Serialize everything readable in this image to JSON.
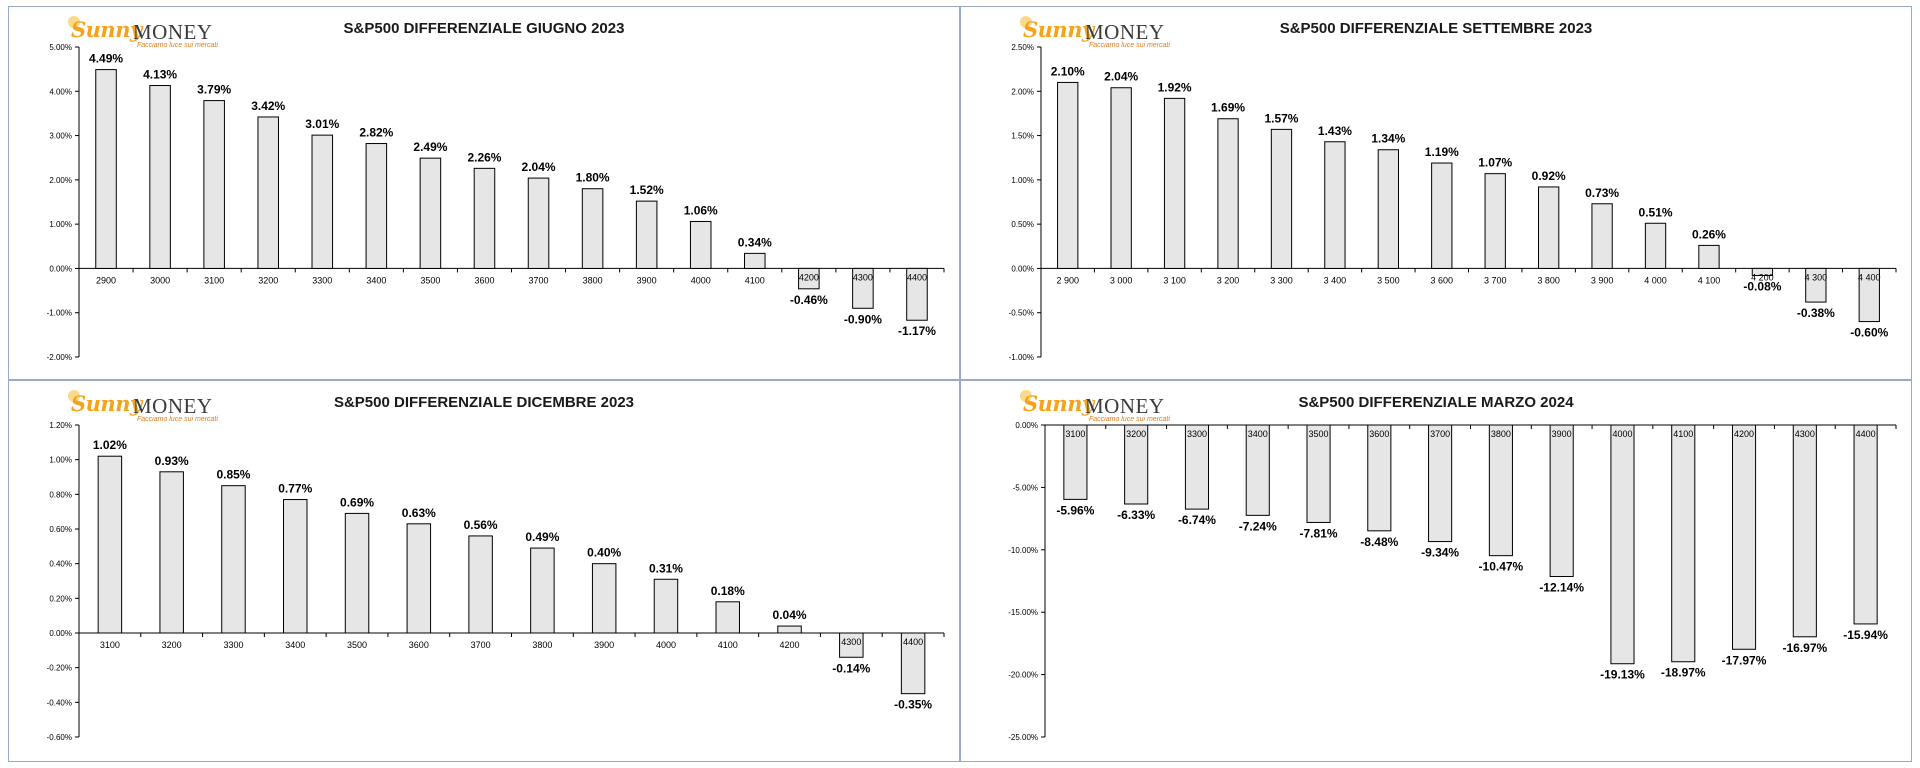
{
  "logo": {
    "brand_sunny": "Sunny",
    "brand_money": "MONEY",
    "tagline": "Facciamo luce sui mercati"
  },
  "colors": {
    "bar_fill": "#e6e6e6",
    "bar_stroke": "#000000",
    "axis": "#000000",
    "label": "#000000"
  },
  "chart_data": [
    {
      "type": "bar",
      "title": "S&P500 DIFFERENZIALE GIUGNO 2023",
      "categories": [
        "2900",
        "3000",
        "3100",
        "3200",
        "3300",
        "3400",
        "3500",
        "3600",
        "3700",
        "3800",
        "3900",
        "4000",
        "4100",
        "4200",
        "4300",
        "4400"
      ],
      "values": [
        4.49,
        4.13,
        3.79,
        3.42,
        3.01,
        2.82,
        2.49,
        2.26,
        2.04,
        1.8,
        1.52,
        1.06,
        0.34,
        -0.46,
        -0.9,
        -1.17
      ],
      "value_labels": [
        "4.49%",
        "4.13%",
        "3.79%",
        "3.42%",
        "3.01%",
        "2.82%",
        "2.49%",
        "2.26%",
        "2.04%",
        "1.80%",
        "1.52%",
        "1.06%",
        "0.34%",
        "-0.46%",
        "-0.90%",
        "-1.17%"
      ],
      "yticks": [
        "5.00%",
        "4.00%",
        "3.00%",
        "2.00%",
        "1.00%",
        "0.00%",
        "-1.00%",
        "-2.00%"
      ],
      "ytick_values": [
        5,
        4,
        3,
        2,
        1,
        0,
        -1,
        -2
      ],
      "ylim": [
        -2,
        5
      ],
      "grid": false,
      "legend": "none"
    },
    {
      "type": "bar",
      "title": "S&P500 DIFFERENZIALE SETTEMBRE 2023",
      "categories": [
        "2 900",
        "3 000",
        "3 100",
        "3 200",
        "3 300",
        "3 400",
        "3 500",
        "3 600",
        "3 700",
        "3 800",
        "3 900",
        "4 000",
        "4 100",
        "4 200",
        "4 300",
        "4 400"
      ],
      "values": [
        2.1,
        2.04,
        1.92,
        1.69,
        1.57,
        1.43,
        1.34,
        1.19,
        1.07,
        0.92,
        0.73,
        0.51,
        0.26,
        -0.08,
        -0.38,
        -0.6
      ],
      "value_labels": [
        "2.10%",
        "2.04%",
        "1.92%",
        "1.69%",
        "1.57%",
        "1.43%",
        "1.34%",
        "1.19%",
        "1.07%",
        "0.92%",
        "0.73%",
        "0.51%",
        "0.26%",
        "-0.08%",
        "-0.38%",
        "-0.60%"
      ],
      "yticks": [
        "2.50%",
        "2.00%",
        "1.50%",
        "1.00%",
        "0.50%",
        "0.00%",
        "-0.50%",
        "-1.00%"
      ],
      "ytick_values": [
        2.5,
        2,
        1.5,
        1,
        0.5,
        0,
        -0.5,
        -1
      ],
      "ylim": [
        -1,
        2.5
      ],
      "grid": false,
      "legend": "none"
    },
    {
      "type": "bar",
      "title": "S&P500 DIFFERENZIALE DICEMBRE 2023",
      "categories": [
        "3100",
        "3200",
        "3300",
        "3400",
        "3500",
        "3600",
        "3700",
        "3800",
        "3900",
        "4000",
        "4100",
        "4200",
        "4300",
        "4400"
      ],
      "values": [
        1.02,
        0.93,
        0.85,
        0.77,
        0.69,
        0.63,
        0.56,
        0.49,
        0.4,
        0.31,
        0.18,
        0.04,
        -0.14,
        -0.35
      ],
      "value_labels": [
        "1.02%",
        "0.93%",
        "0.85%",
        "0.77%",
        "0.69%",
        "0.63%",
        "0.56%",
        "0.49%",
        "0.40%",
        "0.31%",
        "0.18%",
        "0.04%",
        "-0.14%",
        "-0.35%"
      ],
      "yticks": [
        "1.20%",
        "1.00%",
        "0.80%",
        "0.60%",
        "0.40%",
        "0.20%",
        "0.00%",
        "-0.20%",
        "-0.40%",
        "-0.60%"
      ],
      "ytick_values": [
        1.2,
        1,
        0.8,
        0.6,
        0.4,
        0.2,
        0,
        -0.2,
        -0.4,
        -0.6
      ],
      "ylim": [
        -0.6,
        1.2
      ],
      "grid": false,
      "legend": "none"
    },
    {
      "type": "bar",
      "title": "S&P500 DIFFERENZIALE MARZO 2024",
      "categories": [
        "3100",
        "3200",
        "3300",
        "3400",
        "3500",
        "3600",
        "3700",
        "3800",
        "3900",
        "4000",
        "4100",
        "4200",
        "4300",
        "4400"
      ],
      "values": [
        -5.96,
        -6.33,
        -6.74,
        -7.24,
        -7.81,
        -8.48,
        -9.34,
        -10.47,
        -12.14,
        -19.13,
        -18.97,
        -17.97,
        -16.97,
        -15.94
      ],
      "value_labels": [
        "-5.96%",
        "-6.33%",
        "-6.74%",
        "-7.24%",
        "-7.81%",
        "-8.48%",
        "-9.34%",
        "-10.47%",
        "-12.14%",
        "-19.13%",
        "-18.97%",
        "-17.97%",
        "-16.97%",
        "-15.94%"
      ],
      "yticks": [
        "0.00%",
        "-5.00%",
        "-10.00%",
        "-15.00%",
        "-20.00%",
        "-25.00%"
      ],
      "ytick_values": [
        0,
        -5,
        -10,
        -15,
        -20,
        -25
      ],
      "ylim": [
        -25,
        0
      ],
      "grid": false,
      "legend": "none"
    }
  ]
}
